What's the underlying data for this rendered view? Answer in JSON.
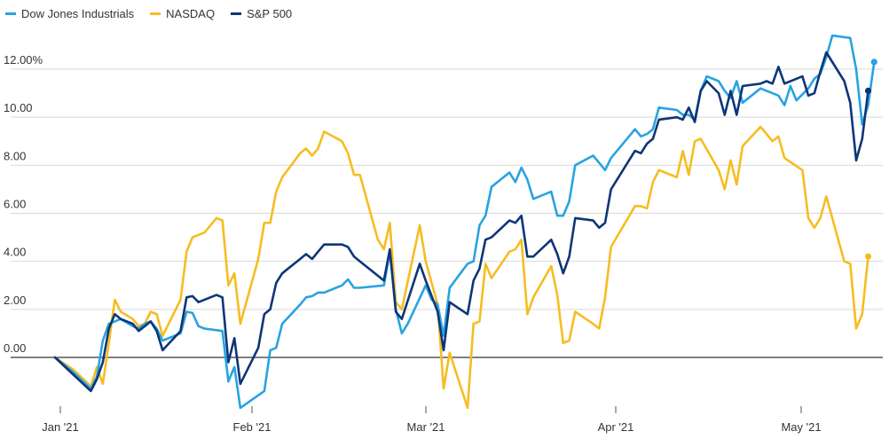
{
  "chart_data": {
    "type": "line",
    "title": "",
    "xlabel": "",
    "ylabel": "",
    "x_tick_labels": [
      "Jan '21",
      "Feb '21",
      "Mar '21",
      "Apr '21",
      "May '21"
    ],
    "y_tick_labels": [
      "0.00",
      "2.00",
      "4.00",
      "6.00",
      "8.00",
      "10.00",
      "12.00%"
    ],
    "y_ticks": [
      0,
      2,
      4,
      6,
      8,
      10,
      12
    ],
    "ylim": [
      -2.2,
      14.8
    ],
    "x_range_days": [
      0,
      138
    ],
    "legend_position": "top-left",
    "grid": true,
    "series": [
      {
        "name": "Dow Jones Industrials",
        "color": "#29a3e0",
        "end_marker": true,
        "points": [
          [
            0,
            0
          ],
          [
            3,
            -0.6
          ],
          [
            6,
            -1.3
          ],
          [
            7,
            -0.8
          ],
          [
            8,
            0.7
          ],
          [
            9,
            1.4
          ],
          [
            10,
            1.5
          ],
          [
            11,
            1.6
          ],
          [
            13,
            1.3
          ],
          [
            14,
            1.2
          ],
          [
            15,
            1.4
          ],
          [
            16,
            1.5
          ],
          [
            17,
            1.2
          ],
          [
            18,
            0.7
          ],
          [
            21,
            1.0
          ],
          [
            22,
            1.9
          ],
          [
            23,
            1.85
          ],
          [
            24,
            1.3
          ],
          [
            25,
            1.2
          ],
          [
            28,
            1.1
          ],
          [
            29,
            -1.0
          ],
          [
            30,
            -0.4
          ],
          [
            31,
            -2.1
          ],
          [
            35,
            -1.4
          ],
          [
            36,
            0.3
          ],
          [
            37,
            0.4
          ],
          [
            38,
            1.4
          ],
          [
            41,
            2.2
          ],
          [
            42,
            2.5
          ],
          [
            43,
            2.55
          ],
          [
            44,
            2.7
          ],
          [
            45,
            2.7
          ],
          [
            48,
            3.0
          ],
          [
            49,
            3.25
          ],
          [
            50,
            2.9
          ],
          [
            51,
            2.9
          ],
          [
            55,
            3.0
          ],
          [
            56,
            4.4
          ],
          [
            57,
            2.0
          ],
          [
            58,
            1.0
          ],
          [
            59,
            1.4
          ],
          [
            62,
            3.0
          ],
          [
            63,
            2.4
          ],
          [
            64,
            2.2
          ],
          [
            65,
            0.9
          ],
          [
            66,
            2.9
          ],
          [
            69,
            3.9
          ],
          [
            70,
            4.0
          ],
          [
            71,
            5.5
          ],
          [
            72,
            5.9
          ],
          [
            73,
            7.1
          ],
          [
            76,
            7.7
          ],
          [
            77,
            7.3
          ],
          [
            78,
            7.9
          ],
          [
            79,
            7.4
          ],
          [
            80,
            6.6
          ],
          [
            83,
            6.9
          ],
          [
            84,
            5.9
          ],
          [
            85,
            5.9
          ],
          [
            86,
            6.5
          ],
          [
            87,
            8.0
          ],
          [
            90,
            8.4
          ],
          [
            91,
            8.1
          ],
          [
            92,
            7.8
          ],
          [
            93,
            8.3
          ],
          [
            97,
            9.5
          ],
          [
            98,
            9.2
          ],
          [
            99,
            9.3
          ],
          [
            100,
            9.5
          ],
          [
            101,
            10.4
          ],
          [
            104,
            10.3
          ],
          [
            105,
            10.1
          ],
          [
            106,
            10.1
          ],
          [
            107,
            9.9
          ],
          [
            108,
            11.1
          ],
          [
            109,
            11.7
          ],
          [
            111,
            11.5
          ],
          [
            112,
            11.1
          ],
          [
            113,
            10.8
          ],
          [
            114,
            11.5
          ],
          [
            115,
            10.6
          ],
          [
            118,
            11.2
          ],
          [
            119,
            11.1
          ],
          [
            120,
            11.0
          ],
          [
            121,
            10.9
          ],
          [
            122,
            10.5
          ],
          [
            123,
            11.3
          ],
          [
            124,
            10.7
          ],
          [
            126,
            11.2
          ],
          [
            127,
            11.6
          ],
          [
            128,
            11.8
          ],
          [
            129,
            12.5
          ],
          [
            130,
            13.4
          ],
          [
            133,
            13.3
          ],
          [
            134,
            12.0
          ],
          [
            135,
            9.7
          ],
          [
            136,
            10.5
          ],
          [
            137,
            12.3
          ]
        ]
      },
      {
        "name": "NASDAQ",
        "color": "#f6bd21",
        "end_marker": true,
        "points": [
          [
            0,
            0
          ],
          [
            3,
            -0.5
          ],
          [
            6,
            -1.2
          ],
          [
            7,
            -0.4
          ],
          [
            8,
            -1.1
          ],
          [
            9,
            0.6
          ],
          [
            10,
            2.4
          ],
          [
            11,
            1.9
          ],
          [
            13,
            1.6
          ],
          [
            14,
            1.3
          ],
          [
            15,
            1.4
          ],
          [
            16,
            1.9
          ],
          [
            17,
            1.8
          ],
          [
            18,
            0.9
          ],
          [
            21,
            2.4
          ],
          [
            22,
            4.4
          ],
          [
            23,
            5.0
          ],
          [
            24,
            5.1
          ],
          [
            25,
            5.2
          ],
          [
            27,
            5.8
          ],
          [
            28,
            5.7
          ],
          [
            29,
            3.0
          ],
          [
            30,
            3.5
          ],
          [
            31,
            1.4
          ],
          [
            34,
            4.1
          ],
          [
            35,
            5.6
          ],
          [
            36,
            5.6
          ],
          [
            37,
            6.9
          ],
          [
            38,
            7.5
          ],
          [
            41,
            8.5
          ],
          [
            42,
            8.7
          ],
          [
            43,
            8.4
          ],
          [
            44,
            8.7
          ],
          [
            45,
            9.4
          ],
          [
            48,
            9.0
          ],
          [
            49,
            8.5
          ],
          [
            50,
            7.6
          ],
          [
            51,
            7.6
          ],
          [
            54,
            4.9
          ],
          [
            55,
            4.5
          ],
          [
            56,
            5.6
          ],
          [
            57,
            2.3
          ],
          [
            58,
            2.0
          ],
          [
            61,
            5.5
          ],
          [
            62,
            4.0
          ],
          [
            64,
            2.2
          ],
          [
            65,
            -1.3
          ],
          [
            66,
            0.2
          ],
          [
            69,
            -2.1
          ],
          [
            70,
            1.4
          ],
          [
            71,
            1.5
          ],
          [
            72,
            3.9
          ],
          [
            73,
            3.3
          ],
          [
            76,
            4.4
          ],
          [
            77,
            4.5
          ],
          [
            78,
            4.9
          ],
          [
            79,
            1.8
          ],
          [
            80,
            2.5
          ],
          [
            83,
            3.8
          ],
          [
            84,
            2.6
          ],
          [
            85,
            0.6
          ],
          [
            86,
            0.7
          ],
          [
            87,
            1.9
          ],
          [
            90,
            1.4
          ],
          [
            91,
            1.2
          ],
          [
            92,
            2.5
          ],
          [
            93,
            4.6
          ],
          [
            97,
            6.3
          ],
          [
            98,
            6.3
          ],
          [
            99,
            6.2
          ],
          [
            100,
            7.3
          ],
          [
            101,
            7.8
          ],
          [
            104,
            7.5
          ],
          [
            105,
            8.6
          ],
          [
            106,
            7.6
          ],
          [
            107,
            9.0
          ],
          [
            108,
            9.1
          ],
          [
            111,
            7.8
          ],
          [
            112,
            7.0
          ],
          [
            113,
            8.2
          ],
          [
            114,
            7.2
          ],
          [
            115,
            8.8
          ],
          [
            118,
            9.6
          ],
          [
            119,
            9.3
          ],
          [
            120,
            9.0
          ],
          [
            121,
            9.2
          ],
          [
            122,
            8.3
          ],
          [
            125,
            7.8
          ],
          [
            126,
            5.8
          ],
          [
            127,
            5.4
          ],
          [
            128,
            5.8
          ],
          [
            129,
            6.7
          ],
          [
            132,
            4.0
          ],
          [
            133,
            3.9
          ],
          [
            134,
            1.2
          ],
          [
            135,
            1.8
          ],
          [
            136,
            4.2
          ]
        ]
      },
      {
        "name": "S&P 500",
        "color": "#0d3677",
        "end_marker": true,
        "points": [
          [
            0,
            0
          ],
          [
            3,
            -0.7
          ],
          [
            6,
            -1.4
          ],
          [
            7,
            -0.9
          ],
          [
            8,
            -0.2
          ],
          [
            9,
            1.2
          ],
          [
            10,
            1.8
          ],
          [
            11,
            1.6
          ],
          [
            13,
            1.4
          ],
          [
            14,
            1.1
          ],
          [
            15,
            1.3
          ],
          [
            16,
            1.5
          ],
          [
            17,
            1.1
          ],
          [
            18,
            0.3
          ],
          [
            21,
            1.1
          ],
          [
            22,
            2.5
          ],
          [
            23,
            2.55
          ],
          [
            24,
            2.3
          ],
          [
            27,
            2.6
          ],
          [
            28,
            2.5
          ],
          [
            29,
            -0.2
          ],
          [
            30,
            0.8
          ],
          [
            31,
            -1.1
          ],
          [
            34,
            0.4
          ],
          [
            35,
            1.8
          ],
          [
            36,
            2.0
          ],
          [
            37,
            3.1
          ],
          [
            38,
            3.5
          ],
          [
            41,
            4.1
          ],
          [
            42,
            4.3
          ],
          [
            43,
            4.1
          ],
          [
            44,
            4.4
          ],
          [
            45,
            4.7
          ],
          [
            48,
            4.7
          ],
          [
            49,
            4.6
          ],
          [
            50,
            4.2
          ],
          [
            51,
            4.0
          ],
          [
            54,
            3.4
          ],
          [
            55,
            3.2
          ],
          [
            56,
            4.5
          ],
          [
            57,
            1.9
          ],
          [
            58,
            1.6
          ],
          [
            61,
            3.9
          ],
          [
            62,
            3.2
          ],
          [
            64,
            1.9
          ],
          [
            65,
            0.3
          ],
          [
            66,
            2.3
          ],
          [
            69,
            1.8
          ],
          [
            70,
            3.2
          ],
          [
            71,
            3.7
          ],
          [
            72,
            4.9
          ],
          [
            73,
            5.0
          ],
          [
            76,
            5.7
          ],
          [
            77,
            5.6
          ],
          [
            78,
            5.9
          ],
          [
            79,
            4.2
          ],
          [
            80,
            4.2
          ],
          [
            83,
            4.9
          ],
          [
            84,
            4.3
          ],
          [
            85,
            3.5
          ],
          [
            86,
            4.2
          ],
          [
            87,
            5.8
          ],
          [
            90,
            5.7
          ],
          [
            91,
            5.4
          ],
          [
            92,
            5.6
          ],
          [
            93,
            7.0
          ],
          [
            97,
            8.6
          ],
          [
            98,
            8.5
          ],
          [
            99,
            8.9
          ],
          [
            100,
            9.1
          ],
          [
            101,
            9.9
          ],
          [
            104,
            10.0
          ],
          [
            105,
            9.9
          ],
          [
            106,
            10.4
          ],
          [
            107,
            9.8
          ],
          [
            108,
            11.1
          ],
          [
            109,
            11.5
          ],
          [
            111,
            11.0
          ],
          [
            112,
            10.1
          ],
          [
            113,
            11.1
          ],
          [
            114,
            10.1
          ],
          [
            115,
            11.3
          ],
          [
            118,
            11.4
          ],
          [
            119,
            11.5
          ],
          [
            120,
            11.4
          ],
          [
            121,
            12.1
          ],
          [
            122,
            11.4
          ],
          [
            125,
            11.7
          ],
          [
            126,
            10.9
          ],
          [
            127,
            11.0
          ],
          [
            128,
            11.9
          ],
          [
            129,
            12.7
          ],
          [
            132,
            11.5
          ],
          [
            133,
            10.6
          ],
          [
            134,
            8.2
          ],
          [
            135,
            9.1
          ],
          [
            136,
            11.1
          ]
        ]
      }
    ]
  }
}
